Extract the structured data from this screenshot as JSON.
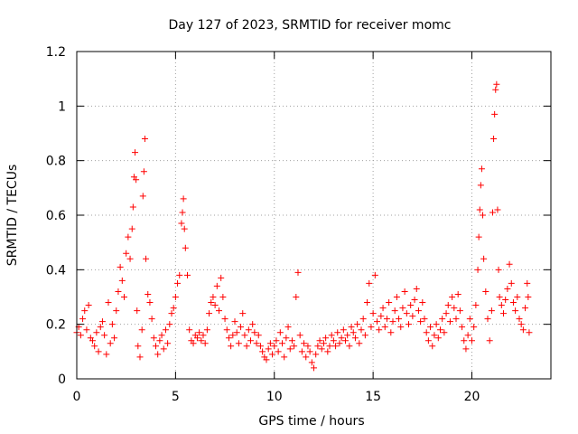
{
  "chart_data": {
    "type": "scatter",
    "title": "Day 127 of 2023, SRMTID for receiver momc",
    "xlabel": "GPS time / hours",
    "ylabel": "SRMTID / TECUs",
    "xlim": [
      0,
      24
    ],
    "ylim": [
      0,
      1.2
    ],
    "xticks": [
      0,
      5,
      10,
      15,
      20
    ],
    "yticks": [
      0,
      0.2,
      0.4,
      0.6,
      0.8,
      1,
      1.2
    ],
    "xtick_labels": [
      "0",
      "5",
      "10",
      "15",
      "20"
    ],
    "ytick_labels": [
      "0",
      "0.2",
      "0.4",
      "0.6",
      "0.8",
      "1",
      "1.2"
    ],
    "grid": true,
    "marker": "+",
    "marker_color": "#ff0000",
    "series": [
      {
        "name": "SRMTID",
        "points": [
          [
            0.0,
            0.17
          ],
          [
            0.1,
            0.19
          ],
          [
            0.2,
            0.16
          ],
          [
            0.3,
            0.22
          ],
          [
            0.4,
            0.25
          ],
          [
            0.5,
            0.18
          ],
          [
            0.6,
            0.27
          ],
          [
            0.7,
            0.15
          ],
          [
            0.8,
            0.14
          ],
          [
            0.9,
            0.12
          ],
          [
            1.0,
            0.17
          ],
          [
            1.1,
            0.1
          ],
          [
            1.2,
            0.19
          ],
          [
            1.3,
            0.21
          ],
          [
            1.4,
            0.16
          ],
          [
            1.5,
            0.09
          ],
          [
            1.6,
            0.28
          ],
          [
            1.7,
            0.13
          ],
          [
            1.8,
            0.2
          ],
          [
            1.9,
            0.15
          ],
          [
            2.0,
            0.25
          ],
          [
            2.1,
            0.32
          ],
          [
            2.2,
            0.41
          ],
          [
            2.3,
            0.36
          ],
          [
            2.4,
            0.3
          ],
          [
            2.5,
            0.46
          ],
          [
            2.6,
            0.52
          ],
          [
            2.7,
            0.44
          ],
          [
            2.8,
            0.55
          ],
          [
            2.85,
            0.63
          ],
          [
            2.9,
            0.74
          ],
          [
            2.95,
            0.83
          ],
          [
            3.0,
            0.73
          ],
          [
            3.05,
            0.25
          ],
          [
            3.1,
            0.12
          ],
          [
            3.2,
            0.08
          ],
          [
            3.3,
            0.18
          ],
          [
            3.35,
            0.67
          ],
          [
            3.4,
            0.76
          ],
          [
            3.45,
            0.88
          ],
          [
            3.5,
            0.44
          ],
          [
            3.6,
            0.31
          ],
          [
            3.7,
            0.28
          ],
          [
            3.8,
            0.22
          ],
          [
            3.9,
            0.15
          ],
          [
            4.0,
            0.12
          ],
          [
            4.1,
            0.09
          ],
          [
            4.2,
            0.14
          ],
          [
            4.3,
            0.16
          ],
          [
            4.4,
            0.11
          ],
          [
            4.5,
            0.18
          ],
          [
            4.6,
            0.13
          ],
          [
            4.7,
            0.2
          ],
          [
            4.8,
            0.24
          ],
          [
            4.9,
            0.26
          ],
          [
            5.0,
            0.3
          ],
          [
            5.1,
            0.35
          ],
          [
            5.2,
            0.38
          ],
          [
            5.3,
            0.57
          ],
          [
            5.35,
            0.61
          ],
          [
            5.4,
            0.66
          ],
          [
            5.45,
            0.55
          ],
          [
            5.5,
            0.48
          ],
          [
            5.6,
            0.38
          ],
          [
            5.7,
            0.18
          ],
          [
            5.8,
            0.14
          ],
          [
            5.9,
            0.13
          ],
          [
            6.0,
            0.16
          ],
          [
            6.1,
            0.15
          ],
          [
            6.2,
            0.17
          ],
          [
            6.3,
            0.14
          ],
          [
            6.4,
            0.16
          ],
          [
            6.5,
            0.13
          ],
          [
            6.6,
            0.18
          ],
          [
            6.7,
            0.24
          ],
          [
            6.8,
            0.28
          ],
          [
            6.9,
            0.3
          ],
          [
            7.0,
            0.27
          ],
          [
            7.1,
            0.34
          ],
          [
            7.2,
            0.25
          ],
          [
            7.3,
            0.37
          ],
          [
            7.4,
            0.3
          ],
          [
            7.5,
            0.22
          ],
          [
            7.6,
            0.18
          ],
          [
            7.7,
            0.15
          ],
          [
            7.8,
            0.12
          ],
          [
            7.9,
            0.16
          ],
          [
            8.0,
            0.21
          ],
          [
            8.1,
            0.17
          ],
          [
            8.2,
            0.13
          ],
          [
            8.3,
            0.19
          ],
          [
            8.4,
            0.24
          ],
          [
            8.5,
            0.16
          ],
          [
            8.6,
            0.12
          ],
          [
            8.7,
            0.18
          ],
          [
            8.8,
            0.14
          ],
          [
            8.9,
            0.2
          ],
          [
            9.0,
            0.17
          ],
          [
            9.1,
            0.13
          ],
          [
            9.2,
            0.16
          ],
          [
            9.3,
            0.12
          ],
          [
            9.4,
            0.1
          ],
          [
            9.5,
            0.08
          ],
          [
            9.6,
            0.07
          ],
          [
            9.7,
            0.11
          ],
          [
            9.8,
            0.13
          ],
          [
            9.9,
            0.09
          ],
          [
            10.0,
            0.12
          ],
          [
            10.1,
            0.14
          ],
          [
            10.2,
            0.1
          ],
          [
            10.3,
            0.17
          ],
          [
            10.4,
            0.13
          ],
          [
            10.5,
            0.08
          ],
          [
            10.6,
            0.15
          ],
          [
            10.7,
            0.19
          ],
          [
            10.8,
            0.11
          ],
          [
            10.9,
            0.14
          ],
          [
            11.0,
            0.12
          ],
          [
            11.1,
            0.3
          ],
          [
            11.2,
            0.39
          ],
          [
            11.3,
            0.16
          ],
          [
            11.4,
            0.1
          ],
          [
            11.5,
            0.13
          ],
          [
            11.6,
            0.08
          ],
          [
            11.7,
            0.12
          ],
          [
            11.8,
            0.1
          ],
          [
            11.9,
            0.06
          ],
          [
            12.0,
            0.04
          ],
          [
            12.1,
            0.09
          ],
          [
            12.2,
            0.12
          ],
          [
            12.3,
            0.14
          ],
          [
            12.4,
            0.11
          ],
          [
            12.5,
            0.13
          ],
          [
            12.6,
            0.15
          ],
          [
            12.7,
            0.1
          ],
          [
            12.8,
            0.12
          ],
          [
            12.9,
            0.16
          ],
          [
            13.0,
            0.14
          ],
          [
            13.1,
            0.12
          ],
          [
            13.2,
            0.17
          ],
          [
            13.3,
            0.13
          ],
          [
            13.4,
            0.15
          ],
          [
            13.5,
            0.18
          ],
          [
            13.6,
            0.14
          ],
          [
            13.7,
            0.16
          ],
          [
            13.8,
            0.12
          ],
          [
            13.9,
            0.19
          ],
          [
            14.0,
            0.17
          ],
          [
            14.1,
            0.15
          ],
          [
            14.2,
            0.2
          ],
          [
            14.3,
            0.13
          ],
          [
            14.4,
            0.18
          ],
          [
            14.5,
            0.22
          ],
          [
            14.6,
            0.16
          ],
          [
            14.7,
            0.28
          ],
          [
            14.8,
            0.35
          ],
          [
            14.9,
            0.19
          ],
          [
            15.0,
            0.24
          ],
          [
            15.1,
            0.38
          ],
          [
            15.2,
            0.21
          ],
          [
            15.3,
            0.18
          ],
          [
            15.4,
            0.23
          ],
          [
            15.5,
            0.26
          ],
          [
            15.6,
            0.19
          ],
          [
            15.7,
            0.22
          ],
          [
            15.8,
            0.28
          ],
          [
            15.9,
            0.17
          ],
          [
            16.0,
            0.21
          ],
          [
            16.1,
            0.25
          ],
          [
            16.2,
            0.3
          ],
          [
            16.3,
            0.22
          ],
          [
            16.4,
            0.19
          ],
          [
            16.5,
            0.26
          ],
          [
            16.6,
            0.32
          ],
          [
            16.7,
            0.24
          ],
          [
            16.8,
            0.2
          ],
          [
            16.9,
            0.27
          ],
          [
            17.0,
            0.23
          ],
          [
            17.1,
            0.29
          ],
          [
            17.2,
            0.33
          ],
          [
            17.3,
            0.25
          ],
          [
            17.4,
            0.21
          ],
          [
            17.5,
            0.28
          ],
          [
            17.6,
            0.22
          ],
          [
            17.7,
            0.17
          ],
          [
            17.8,
            0.14
          ],
          [
            17.9,
            0.19
          ],
          [
            18.0,
            0.12
          ],
          [
            18.1,
            0.16
          ],
          [
            18.2,
            0.2
          ],
          [
            18.3,
            0.15
          ],
          [
            18.4,
            0.18
          ],
          [
            18.5,
            0.22
          ],
          [
            18.6,
            0.17
          ],
          [
            18.7,
            0.24
          ],
          [
            18.8,
            0.27
          ],
          [
            18.9,
            0.21
          ],
          [
            19.0,
            0.3
          ],
          [
            19.1,
            0.26
          ],
          [
            19.2,
            0.22
          ],
          [
            19.3,
            0.31
          ],
          [
            19.4,
            0.25
          ],
          [
            19.5,
            0.19
          ],
          [
            19.6,
            0.14
          ],
          [
            19.7,
            0.11
          ],
          [
            19.8,
            0.16
          ],
          [
            19.9,
            0.22
          ],
          [
            20.0,
            0.14
          ],
          [
            20.1,
            0.19
          ],
          [
            20.2,
            0.27
          ],
          [
            20.3,
            0.4
          ],
          [
            20.35,
            0.52
          ],
          [
            20.4,
            0.62
          ],
          [
            20.45,
            0.71
          ],
          [
            20.5,
            0.77
          ],
          [
            20.55,
            0.6
          ],
          [
            20.6,
            0.44
          ],
          [
            20.7,
            0.32
          ],
          [
            20.8,
            0.22
          ],
          [
            20.9,
            0.14
          ],
          [
            21.0,
            0.25
          ],
          [
            21.05,
            0.61
          ],
          [
            21.1,
            0.88
          ],
          [
            21.15,
            0.97
          ],
          [
            21.2,
            1.06
          ],
          [
            21.25,
            1.08
          ],
          [
            21.3,
            0.62
          ],
          [
            21.35,
            0.4
          ],
          [
            21.4,
            0.3
          ],
          [
            21.5,
            0.27
          ],
          [
            21.6,
            0.24
          ],
          [
            21.7,
            0.29
          ],
          [
            21.8,
            0.33
          ],
          [
            21.9,
            0.42
          ],
          [
            22.0,
            0.35
          ],
          [
            22.1,
            0.28
          ],
          [
            22.2,
            0.25
          ],
          [
            22.3,
            0.3
          ],
          [
            22.4,
            0.22
          ],
          [
            22.5,
            0.2
          ],
          [
            22.6,
            0.18
          ],
          [
            22.7,
            0.26
          ],
          [
            22.8,
            0.35
          ],
          [
            22.85,
            0.3
          ],
          [
            22.9,
            0.17
          ]
        ]
      }
    ]
  }
}
